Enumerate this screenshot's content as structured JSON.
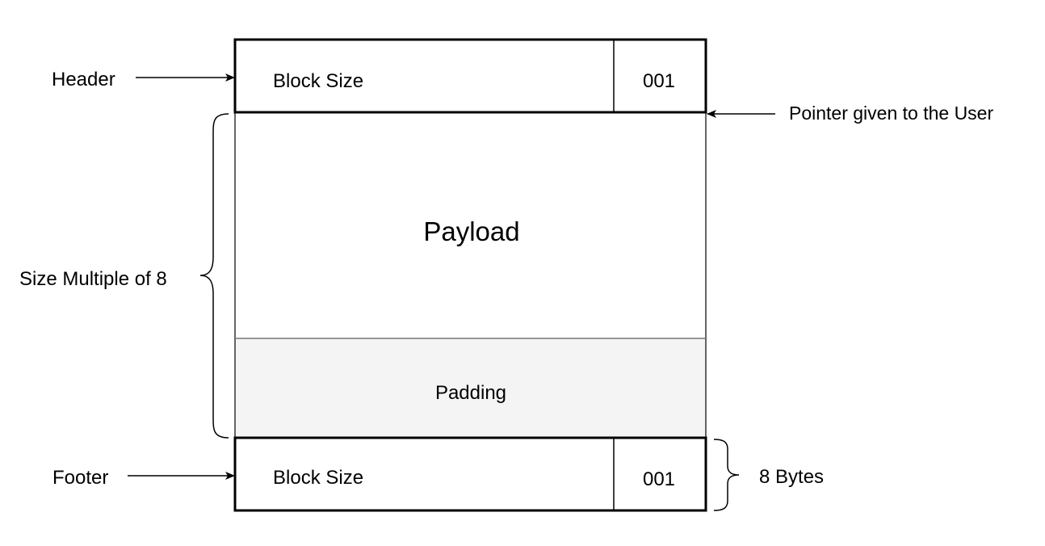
{
  "header": {
    "label": "Header",
    "block_size": "Block Size",
    "flags": "001"
  },
  "pointer_label": "Pointer given to the User",
  "payload_label": "Payload",
  "padding_label": "Padding",
  "size_multiple_label": "Size Multiple of 8",
  "footer": {
    "label": "Footer",
    "block_size": "Block Size",
    "flags": "001"
  },
  "footer_size_label": "8 Bytes",
  "colors": {
    "stroke": "#000000",
    "padding_fill": "#f4f4f4",
    "divider": "#8c8c8c",
    "background": "#ffffff"
  }
}
